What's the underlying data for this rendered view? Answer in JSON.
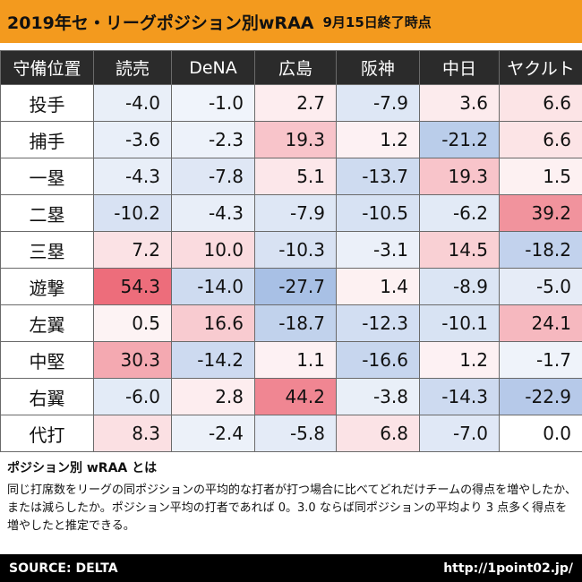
{
  "title": "2019年セ・リーグポジション別wRAA",
  "subtitle": "9月15日終了時点",
  "table": {
    "columns": [
      "守備位置",
      "読売",
      "DeNA",
      "広島",
      "阪神",
      "中日",
      "ヤクルト"
    ],
    "rows": [
      {
        "position": "投手",
        "values": [
          "-4.0",
          "-1.0",
          "2.7",
          "-7.9",
          "3.6",
          "6.6"
        ]
      },
      {
        "position": "捕手",
        "values": [
          "-3.6",
          "-2.3",
          "19.3",
          "1.2",
          "-21.2",
          "6.6"
        ]
      },
      {
        "position": "一塁",
        "values": [
          "-4.3",
          "-7.8",
          "5.1",
          "-13.7",
          "19.3",
          "1.5"
        ]
      },
      {
        "position": "二塁",
        "values": [
          "-10.2",
          "-4.3",
          "-7.9",
          "-10.5",
          "-6.2",
          "39.2"
        ]
      },
      {
        "position": "三塁",
        "values": [
          "7.2",
          "10.0",
          "-10.3",
          "-3.1",
          "14.5",
          "-18.2"
        ]
      },
      {
        "position": "遊撃",
        "values": [
          "54.3",
          "-14.0",
          "-27.7",
          "1.4",
          "-8.9",
          "-5.0"
        ]
      },
      {
        "position": "左翼",
        "values": [
          "0.5",
          "16.6",
          "-18.7",
          "-12.3",
          "-10.1",
          "24.1"
        ]
      },
      {
        "position": "中堅",
        "values": [
          "30.3",
          "-14.2",
          "1.1",
          "-16.6",
          "1.2",
          "-1.7"
        ]
      },
      {
        "position": "右翼",
        "values": [
          "-6.0",
          "2.8",
          "44.2",
          "-3.8",
          "-14.3",
          "-22.9"
        ]
      },
      {
        "position": "代打",
        "values": [
          "8.3",
          "-2.4",
          "-5.8",
          "6.8",
          "-7.0",
          "0.0"
        ]
      }
    ]
  },
  "description": {
    "title": "ポジション別 wRAA とは",
    "body": "同じ打席数をリーグの同ポジションの平均的な打者が打つ場合に比べてどれだけチームの得点を増やしたか、または減らしたか。ポジション平均の打者であれば 0。3.0 ならば同ポジションの平均より 3 点多く得点を増やしたと推定できる。"
  },
  "footer": {
    "source": "SOURCE: DELTA",
    "url": "http://1point02.jp/"
  },
  "colors": {
    "header_bar": "#f39a1e",
    "table_header": "#2b2b2b",
    "positive": "#e8495a",
    "negative": "#3a6fc4",
    "footer": "#000000"
  }
}
